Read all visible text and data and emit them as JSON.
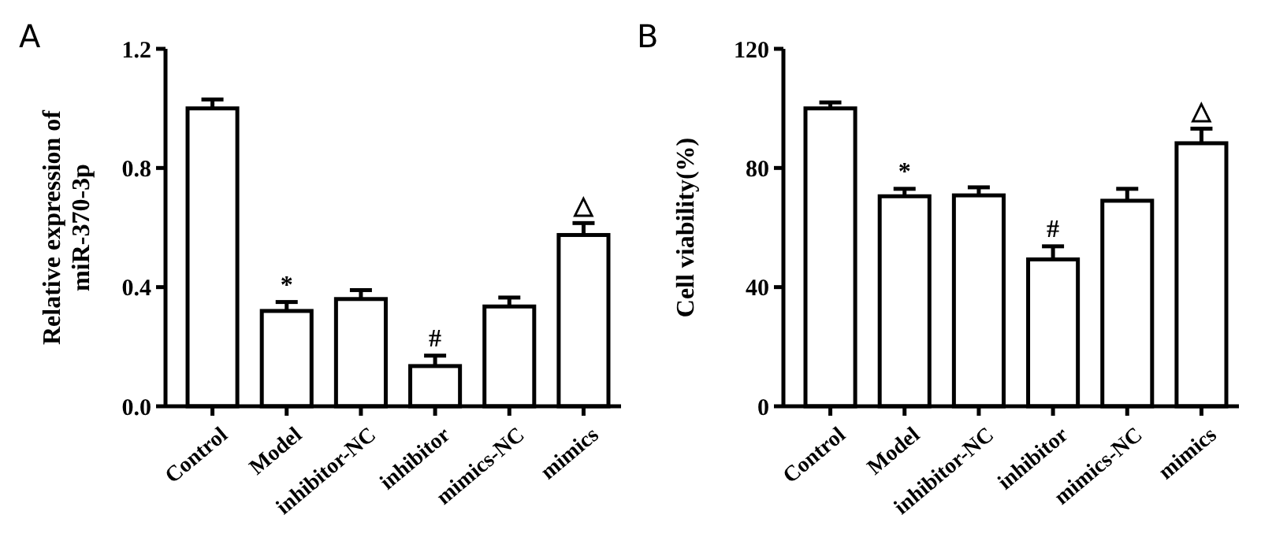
{
  "chart_data": [
    {
      "type": "bar",
      "title": "A",
      "ylabel": "Relative expression of\nmiR-370-3p",
      "categories": [
        "Control",
        "Model",
        "inhibitor-NC",
        "inhibitor",
        "mimics-NC",
        "mimics"
      ],
      "values": [
        1.0,
        0.32,
        0.36,
        0.135,
        0.335,
        0.575
      ],
      "errors": [
        0.03,
        0.03,
        0.03,
        0.035,
        0.03,
        0.04
      ],
      "color": "#ffffff",
      "ylim": [
        0,
        1.2
      ],
      "yticks": [
        {
          "value": 0,
          "label": "0.0"
        },
        {
          "value": 0.4,
          "label": "0.4"
        },
        {
          "value": 0.8,
          "label": "0.8"
        },
        {
          "value": 1.2,
          "label": "1.2"
        }
      ],
      "grid": false,
      "annotations": [
        {
          "text": "*",
          "x": "Model",
          "y": 0.35
        },
        {
          "text": "#",
          "x": "inhibitor",
          "y": 0.17
        },
        {
          "text": "△",
          "x": "mimics",
          "y": 0.615
        }
      ]
    },
    {
      "type": "bar",
      "title": "B",
      "ylabel": "Cell viability(%)",
      "categories": [
        "Control",
        "Model",
        "inhibitor-NC",
        "inhibitor",
        "mimics-NC",
        "mimics"
      ],
      "values": [
        100,
        70.5,
        70.8,
        49.3,
        69,
        88.3
      ],
      "errors": [
        2,
        2.5,
        2.7,
        4.4,
        4,
        4.9
      ],
      "color": "#ffffff",
      "ylim": [
        0,
        120
      ],
      "yticks": [
        0,
        40,
        80,
        120
      ],
      "grid": false,
      "annotations": [
        {
          "text": "*",
          "x": "Model",
          "y": 73
        },
        {
          "text": "#",
          "x": "inhibitor",
          "y": 53.7
        },
        {
          "text": "△",
          "x": "mimics",
          "y": 93.2
        }
      ]
    }
  ]
}
